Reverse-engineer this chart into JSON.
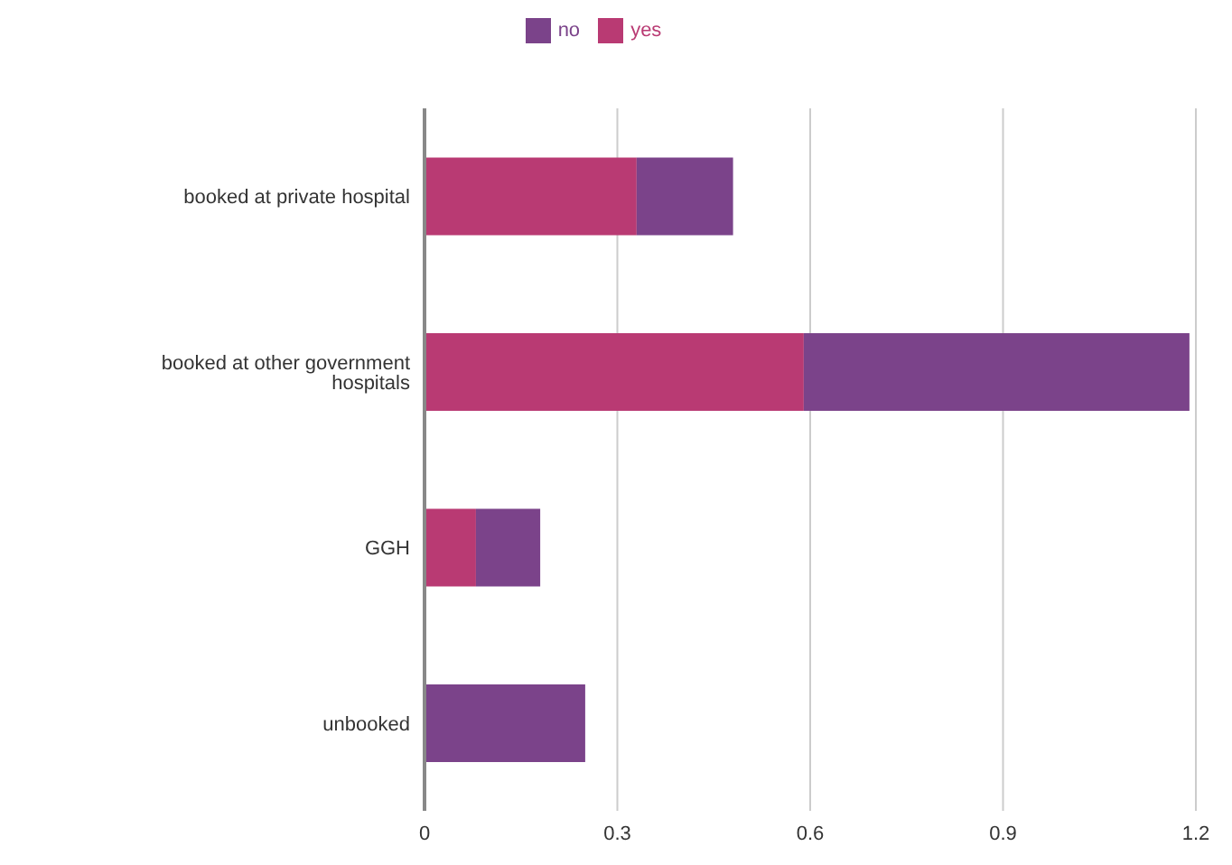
{
  "chart_data": {
    "type": "bar",
    "orientation": "horizontal",
    "stacked": true,
    "categories": [
      "booked at private hospital",
      "booked at other government hospitals",
      "GGH",
      "unbooked"
    ],
    "series": [
      {
        "name": "yes",
        "color": "#b93a73",
        "values": [
          0.33,
          0.59,
          0.08,
          0
        ]
      },
      {
        "name": "no",
        "color": "#7b438a",
        "values": [
          0.15,
          0.6,
          0.1,
          0.25
        ]
      }
    ],
    "xlim": [
      0,
      1.2
    ],
    "xticks": [
      0,
      0.3,
      0.6,
      0.9,
      1.2
    ],
    "grid": "x",
    "legend": "top"
  }
}
